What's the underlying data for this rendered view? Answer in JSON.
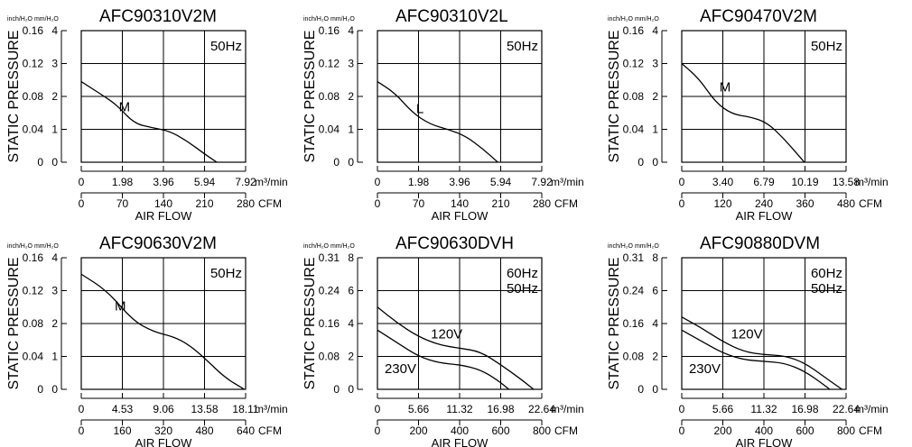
{
  "units_small": "inch/H₂O  mm/H₂O",
  "chart_data": [
    {
      "type": "line",
      "title": "AFC90310V2M",
      "ylabel": "STATIC PRESSURE",
      "xlabel": "AIR FLOW",
      "freq_label": [
        "50Hz"
      ],
      "x_unit_top": "m³/min",
      "x_unit_bottom": "CFM",
      "y_ticks_inch": [
        "0.16",
        "0.12",
        "0.08",
        "0.04",
        "0"
      ],
      "y_ticks_mm": [
        "4",
        "3",
        "2",
        "1",
        "0"
      ],
      "x_ticks_m3": [
        "0",
        "1.98",
        "3.96",
        "5.94",
        "7.92"
      ],
      "x_ticks_cfm": [
        "0",
        "70",
        "140",
        "210",
        "280"
      ],
      "xlim": [
        0,
        280
      ],
      "ylim": [
        0,
        4
      ],
      "grid": true,
      "series": [
        {
          "name": "M",
          "label_at": [
            64,
            1.55
          ],
          "points": [
            [
              0,
              2.45
            ],
            [
              35,
              2.05
            ],
            [
              60,
              1.75
            ],
            [
              90,
              1.18
            ],
            [
              120,
              1.05
            ],
            [
              150,
              0.95
            ],
            [
              180,
              0.65
            ],
            [
              210,
              0.25
            ],
            [
              231,
              0
            ]
          ]
        }
      ]
    },
    {
      "type": "line",
      "title": "AFC90310V2L",
      "ylabel": "STATIC PRESSURE",
      "xlabel": "AIR FLOW",
      "freq_label": [
        "50Hz"
      ],
      "x_unit_top": "m³/min",
      "x_unit_bottom": "CFM",
      "y_ticks_inch": [
        "0.16",
        "0.12",
        "0.08",
        "0.04",
        "0"
      ],
      "y_ticks_mm": [
        "4",
        "3",
        "2",
        "1",
        "0"
      ],
      "x_ticks_m3": [
        "0",
        "1.98",
        "3.96",
        "5.94",
        "7.92"
      ],
      "x_ticks_cfm": [
        "0",
        "70",
        "140",
        "210",
        "280"
      ],
      "xlim": [
        0,
        280
      ],
      "ylim": [
        0,
        4
      ],
      "grid": true,
      "series": [
        {
          "name": "L",
          "label_at": [
            66,
            1.5
          ],
          "points": [
            [
              0,
              2.45
            ],
            [
              30,
              2.1
            ],
            [
              60,
              1.5
            ],
            [
              90,
              1.15
            ],
            [
              120,
              1.0
            ],
            [
              150,
              0.8
            ],
            [
              180,
              0.4
            ],
            [
              205,
              0
            ]
          ]
        }
      ]
    },
    {
      "type": "line",
      "title": "AFC90470V2M",
      "ylabel": "STATIC PRESSURE",
      "xlabel": "AIR FLOW",
      "freq_label": [
        "50Hz"
      ],
      "x_unit_top": "m³/min",
      "x_unit_bottom": "CFM",
      "y_ticks_inch": [
        "0.16",
        "0.12",
        "0.08",
        "0.04",
        "0"
      ],
      "y_ticks_mm": [
        "4",
        "3",
        "2",
        "1",
        "0"
      ],
      "x_ticks_m3": [
        "0",
        "3.40",
        "6.79",
        "10.19",
        "13.58"
      ],
      "x_ticks_cfm": [
        "0",
        "120",
        "240",
        "360",
        "480"
      ],
      "xlim": [
        0,
        480
      ],
      "ylim": [
        0,
        4
      ],
      "grid": true,
      "series": [
        {
          "name": "M",
          "label_at": [
            110,
            2.15
          ],
          "points": [
            [
              0,
              3.0
            ],
            [
              50,
              2.55
            ],
            [
              100,
              1.8
            ],
            [
              150,
              1.45
            ],
            [
              200,
              1.38
            ],
            [
              250,
              1.2
            ],
            [
              300,
              0.7
            ],
            [
              350,
              0.1
            ],
            [
              358,
              0
            ]
          ]
        }
      ]
    },
    {
      "type": "line",
      "title": "AFC90630V2M",
      "ylabel": "STATIC PRESSURE",
      "xlabel": "AIR FLOW",
      "freq_label": [
        "50Hz"
      ],
      "x_unit_top": "m³/min",
      "x_unit_bottom": "CFM",
      "y_ticks_inch": [
        "0.16",
        "0.12",
        "0.08",
        "0.04",
        "0"
      ],
      "y_ticks_mm": [
        "4",
        "3",
        "2",
        "1",
        "0"
      ],
      "x_ticks_m3": [
        "0",
        "4.53",
        "9.06",
        "13.58",
        "18.11"
      ],
      "x_ticks_cfm": [
        "0",
        "160",
        "320",
        "480",
        "640"
      ],
      "xlim": [
        0,
        640
      ],
      "ylim": [
        0,
        4
      ],
      "grid": true,
      "series": [
        {
          "name": "M",
          "label_at": [
            130,
            2.4
          ],
          "points": [
            [
              0,
              3.5
            ],
            [
              100,
              3.0
            ],
            [
              200,
              2.1
            ],
            [
              280,
              1.75
            ],
            [
              360,
              1.6
            ],
            [
              420,
              1.35
            ],
            [
              480,
              0.95
            ],
            [
              560,
              0.35
            ],
            [
              635,
              0
            ]
          ]
        }
      ]
    },
    {
      "type": "line",
      "title": "AFC90630DVH",
      "ylabel": "STATIC PRESSURE",
      "xlabel": "AIR FLOW",
      "freq_label": [
        "60Hz",
        "50Hz"
      ],
      "x_unit_top": "m³/min",
      "x_unit_bottom": "CFM",
      "y_ticks_inch": [
        "0.31",
        "0.24",
        "0.16",
        "0.08",
        "0"
      ],
      "y_ticks_mm": [
        "8",
        "6",
        "4",
        "2",
        "0"
      ],
      "x_ticks_m3": [
        "0",
        "5.66",
        "11.32",
        "16.98",
        "22.64"
      ],
      "x_ticks_cfm": [
        "0",
        "200",
        "400",
        "600",
        "800"
      ],
      "xlim": [
        0,
        800
      ],
      "ylim": [
        0,
        8
      ],
      "grid": true,
      "series": [
        {
          "name": "120V",
          "label_at": [
            260,
            3.1
          ],
          "points": [
            [
              0,
              5.0
            ],
            [
              100,
              4.0
            ],
            [
              200,
              3.2
            ],
            [
              300,
              2.7
            ],
            [
              400,
              2.5
            ],
            [
              500,
              2.3
            ],
            [
              600,
              1.5
            ],
            [
              700,
              0.6
            ],
            [
              760,
              0
            ]
          ]
        },
        {
          "name": "230V",
          "label_at": [
            35,
            1.0
          ],
          "points": [
            [
              0,
              3.6
            ],
            [
              100,
              2.8
            ],
            [
              200,
              2.0
            ],
            [
              300,
              1.6
            ],
            [
              400,
              1.5
            ],
            [
              500,
              1.2
            ],
            [
              580,
              0.6
            ],
            [
              640,
              0
            ]
          ]
        }
      ]
    },
    {
      "type": "line",
      "title": "AFC90880DVM",
      "ylabel": "STATIC PRESSURE",
      "xlabel": "AIR FLOW",
      "freq_label": [
        "60Hz",
        "50Hz"
      ],
      "x_unit_top": "m³/min",
      "x_unit_bottom": "CFM",
      "y_ticks_inch": [
        "0.31",
        "0.24",
        "0.16",
        "0.08",
        "0"
      ],
      "y_ticks_mm": [
        "8",
        "6",
        "4",
        "2",
        "0"
      ],
      "x_ticks_m3": [
        "0",
        "5.66",
        "11.32",
        "16.98",
        "22.64"
      ],
      "x_ticks_cfm": [
        "0",
        "200",
        "400",
        "600",
        "800"
      ],
      "xlim": [
        0,
        800
      ],
      "ylim": [
        0,
        8
      ],
      "grid": true,
      "series": [
        {
          "name": "120V",
          "label_at": [
            240,
            3.1
          ],
          "points": [
            [
              0,
              4.4
            ],
            [
              100,
              3.7
            ],
            [
              200,
              2.9
            ],
            [
              300,
              2.3
            ],
            [
              400,
              2.1
            ],
            [
              500,
              2.05
            ],
            [
              600,
              1.6
            ],
            [
              700,
              0.7
            ],
            [
              780,
              0
            ]
          ]
        },
        {
          "name": "230V",
          "label_at": [
            35,
            1.0
          ],
          "points": [
            [
              0,
              3.6
            ],
            [
              100,
              2.9
            ],
            [
              200,
              2.2
            ],
            [
              300,
              1.8
            ],
            [
              400,
              1.7
            ],
            [
              500,
              1.6
            ],
            [
              600,
              1.1
            ],
            [
              700,
              0.2
            ],
            [
              720,
              0
            ]
          ]
        }
      ]
    }
  ]
}
